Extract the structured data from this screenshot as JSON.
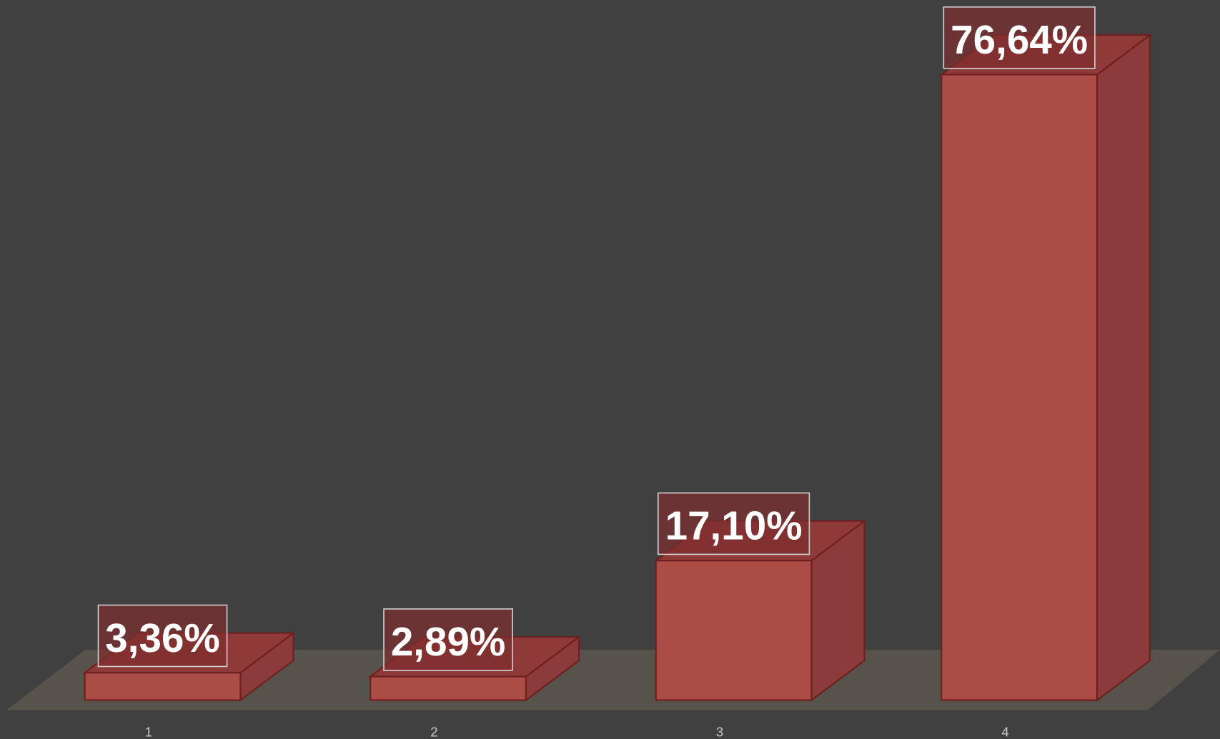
{
  "chart_data": {
    "type": "bar3d",
    "categories": [
      "1",
      "2",
      "3",
      "4"
    ],
    "values": [
      3.36,
      2.89,
      17.1,
      76.64
    ],
    "value_labels": [
      "3,36%",
      "2,89%",
      "17,10%",
      "76,64%"
    ],
    "color": "#ac4c46"
  }
}
